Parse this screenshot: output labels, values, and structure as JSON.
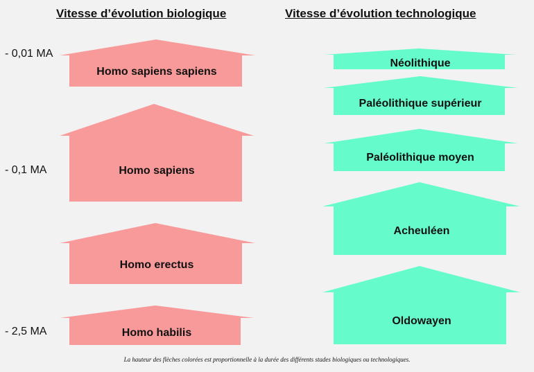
{
  "titles": {
    "biological": "Vitesse d’évolution biologique",
    "technological": "Vitesse d’évolution technologique"
  },
  "time_axis": {
    "ticks": [
      "- 0,01 MA",
      "- 0,1 MA",
      "- 2,5 MA"
    ]
  },
  "biological_stages": [
    {
      "label": "Homo sapiens sapiens"
    },
    {
      "label": "Homo sapiens"
    },
    {
      "label": "Homo erectus"
    },
    {
      "label": "Homo habilis"
    }
  ],
  "technological_stages": [
    {
      "label": "Néolithique"
    },
    {
      "label": "Paléolithique supérieur"
    },
    {
      "label": "Paléolithique moyen"
    },
    {
      "label": "Acheuléen"
    },
    {
      "label": "Oldowayen"
    }
  ],
  "colors": {
    "biological_fill": "#f99a9a",
    "technological_fill": "#66fbcb",
    "background": "#f2f2f2"
  },
  "caption": "La hauteur des flèches colorées est proportionnelle à la durée des différents stades biologiques ou technologiques."
}
